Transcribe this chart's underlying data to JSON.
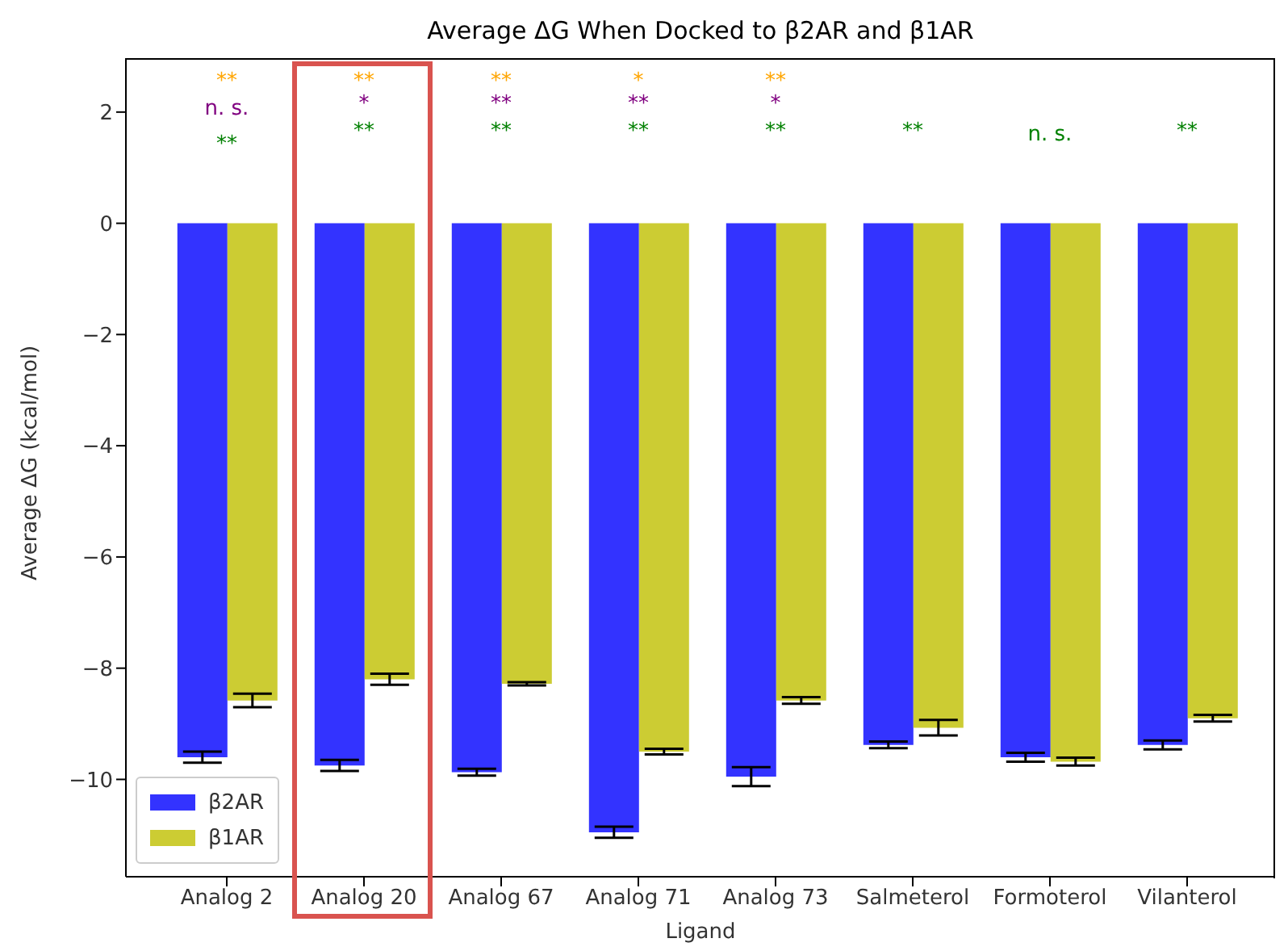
{
  "chart_data": {
    "type": "bar",
    "title": "Average ΔG When Docked to β2AR and β1AR",
    "xlabel": "Ligand",
    "ylabel": "Average ΔG (kcal/mol)",
    "categories": [
      "Analog 2",
      "Analog 20",
      "Analog 67",
      "Analog 71",
      "Analog 73",
      "Salmeterol",
      "Formoterol",
      "Vilanterol"
    ],
    "series": [
      {
        "name": "β2AR",
        "color": "#3333ff",
        "values": [
          -9.6,
          -9.75,
          -9.87,
          -10.95,
          -9.95,
          -9.38,
          -9.6,
          -9.38
        ],
        "errors": [
          0.1,
          0.1,
          0.06,
          0.1,
          0.17,
          0.06,
          0.08,
          0.08
        ]
      },
      {
        "name": "β1AR",
        "color": "#cccc33",
        "values": [
          -8.58,
          -8.2,
          -8.28,
          -9.5,
          -8.58,
          -9.07,
          -9.68,
          -8.9
        ],
        "errors": [
          0.12,
          0.1,
          0.03,
          0.05,
          0.06,
          0.14,
          0.07,
          0.06
        ]
      }
    ],
    "ylim": [
      -11.75,
      2.97
    ],
    "yticks": [
      -10,
      -8,
      -6,
      -4,
      -2,
      0,
      2
    ],
    "grid": false,
    "legend": "bottom left",
    "annotations": [
      "**",
      "n. s.",
      "**",
      "**",
      "*",
      "**",
      "**",
      "**",
      "**",
      "*",
      "**",
      "**",
      "**",
      "*",
      "**",
      "**",
      "n. s.",
      "**"
    ]
  }
}
